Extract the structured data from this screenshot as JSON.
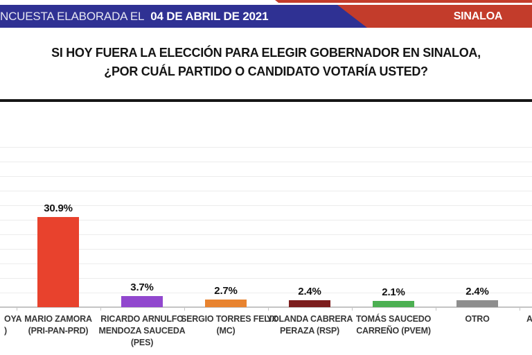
{
  "banner": {
    "strip_color": "#C33C2B",
    "blue_bg": "#2F3193",
    "red_bg": "#C33C2B",
    "left_regular": "NCUESTA ELABORADA EL",
    "left_bold": "04 DE ABRIL DE 2021",
    "right_label": "SINALOA"
  },
  "question": {
    "line1": "SI HOY FUERA LA ELECCIÓN PARA ELEGIR GOBERNADOR EN SINALOA,",
    "line2": "¿POR CUÁL PARTIDO O CANDIDATO VOTARÍA USTED?"
  },
  "chart_data": {
    "type": "bar",
    "title": "SI HOY FUERA LA ELECCIÓN PARA ELEGIR GOBERNADOR EN SINALOA, ¿POR CUÁL PARTIDO O CANDIDATO VOTARÍA USTED?",
    "categories": [
      [
        "MARIO ZAMORA",
        "(PRI-PAN-PRD)"
      ],
      [
        "RICARDO ARNULFO",
        "MENDOZA SAUCEDA",
        "(PES)"
      ],
      [
        "SERGIO TORRES FELIX",
        "(MC)"
      ],
      [
        "YOLANDA CABRERA",
        "PERAZA (RSP)"
      ],
      [
        "TOMÁS SAUCEDO",
        "CARREÑO (PVEM)"
      ],
      [
        "OTRO"
      ]
    ],
    "values": [
      30.9,
      3.7,
      2.7,
      2.4,
      2.1,
      2.4
    ],
    "value_labels": [
      "30.9%",
      "3.7%",
      "2.7%",
      "2.4%",
      "2.1%",
      "2.4%"
    ],
    "bar_colors": [
      "#E8422D",
      "#9147CE",
      "#E8832F",
      "#7C1D1D",
      "#4CB052",
      "#8E8E8E"
    ],
    "xlabel": "",
    "ylabel": "",
    "ylim": [
      0,
      55
    ],
    "ygrid_step_pct": 5,
    "grid": true,
    "legend": "none",
    "cropped_left_label_lines": [
      "OYA",
      ")"
    ],
    "cropped_right_label": "A"
  }
}
